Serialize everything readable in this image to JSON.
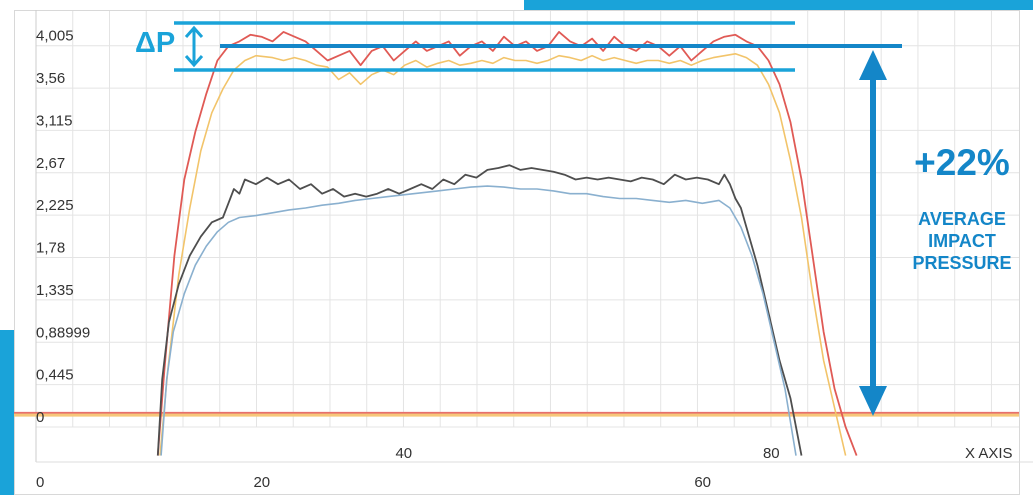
{
  "chart_data": {
    "type": "line",
    "y_ticks": [
      "4,005",
      "3,56",
      "3,115",
      "2,67",
      "2,225",
      "1,78",
      "1,335",
      "0,88999",
      "0,445",
      "0"
    ],
    "y_tick_values": [
      4.005,
      3.56,
      3.115,
      2.67,
      2.225,
      1.78,
      1.335,
      0.88999,
      0.445,
      0
    ],
    "ylim": [
      0,
      4.38
    ],
    "x_axis_top": {
      "ticks": [
        "40",
        "80"
      ],
      "tick_values": [
        40,
        80
      ],
      "label": "X AXIS",
      "xlim": [
        0,
        107
      ]
    },
    "x_axis_bottom": {
      "ticks": [
        "0",
        "20",
        "60"
      ],
      "tick_values": [
        0,
        20,
        60
      ],
      "xlim": [
        0,
        90
      ]
    },
    "grid": true,
    "series": [
      {
        "color": "#e05a55",
        "width": 1.8,
        "values": [
          [
            10.6,
            -0.3
          ],
          [
            11.2,
            0.6
          ],
          [
            12.1,
            1.8
          ],
          [
            13,
            2.6
          ],
          [
            14,
            3.1
          ],
          [
            15,
            3.5
          ],
          [
            16,
            3.85
          ],
          [
            17,
            4.0
          ],
          [
            18,
            4.05
          ],
          [
            19,
            4.12
          ],
          [
            20,
            4.1
          ],
          [
            21,
            4.05
          ],
          [
            22,
            4.15
          ],
          [
            23,
            4.1
          ],
          [
            24,
            4.05
          ],
          [
            25,
            3.95
          ],
          [
            26,
            3.85
          ],
          [
            27,
            3.9
          ],
          [
            28,
            3.95
          ],
          [
            29,
            3.8
          ],
          [
            30,
            3.95
          ],
          [
            31,
            4.0
          ],
          [
            32,
            3.85
          ],
          [
            33,
            3.95
          ],
          [
            34,
            4.05
          ],
          [
            35,
            3.95
          ],
          [
            36,
            4.0
          ],
          [
            37,
            4.05
          ],
          [
            38,
            3.9
          ],
          [
            39,
            4.0
          ],
          [
            40,
            4.05
          ],
          [
            41,
            3.95
          ],
          [
            42,
            4.1
          ],
          [
            43,
            4.0
          ],
          [
            44,
            4.05
          ],
          [
            45,
            3.95
          ],
          [
            46,
            4.0
          ],
          [
            47,
            4.15
          ],
          [
            48,
            4.05
          ],
          [
            49,
            4.0
          ],
          [
            50,
            4.08
          ],
          [
            51,
            3.95
          ],
          [
            52,
            4.1
          ],
          [
            53,
            4.0
          ],
          [
            54,
            3.95
          ],
          [
            55,
            4.05
          ],
          [
            56,
            4.0
          ],
          [
            57,
            3.9
          ],
          [
            58,
            4.0
          ],
          [
            59,
            3.85
          ],
          [
            60,
            3.95
          ],
          [
            61,
            4.05
          ],
          [
            62,
            4.1
          ],
          [
            63,
            4.12
          ],
          [
            64,
            4.05
          ],
          [
            65,
            4.0
          ],
          [
            66,
            3.85
          ],
          [
            67,
            3.6
          ],
          [
            68,
            3.2
          ],
          [
            69,
            2.6
          ],
          [
            70,
            1.8
          ],
          [
            71,
            1.0
          ],
          [
            72,
            0.4
          ],
          [
            73,
            0.0
          ],
          [
            74,
            -0.3
          ]
        ]
      },
      {
        "color": "#f2c46a",
        "width": 1.6,
        "values": [
          [
            10.8,
            -0.3
          ],
          [
            11.5,
            0.6
          ],
          [
            12.5,
            1.6
          ],
          [
            13.5,
            2.3
          ],
          [
            14.5,
            2.9
          ],
          [
            15.5,
            3.3
          ],
          [
            16.5,
            3.55
          ],
          [
            17.5,
            3.75
          ],
          [
            18.5,
            3.85
          ],
          [
            19.5,
            3.9
          ],
          [
            21,
            3.88
          ],
          [
            22,
            3.85
          ],
          [
            23,
            3.88
          ],
          [
            24,
            3.85
          ],
          [
            25,
            3.8
          ],
          [
            26,
            3.78
          ],
          [
            27,
            3.65
          ],
          [
            28,
            3.72
          ],
          [
            29,
            3.6
          ],
          [
            30,
            3.7
          ],
          [
            31,
            3.75
          ],
          [
            32,
            3.7
          ],
          [
            33,
            3.8
          ],
          [
            34,
            3.85
          ],
          [
            35,
            3.78
          ],
          [
            36,
            3.82
          ],
          [
            37,
            3.85
          ],
          [
            38,
            3.8
          ],
          [
            39,
            3.82
          ],
          [
            40,
            3.85
          ],
          [
            41,
            3.82
          ],
          [
            42,
            3.88
          ],
          [
            43,
            3.85
          ],
          [
            44,
            3.85
          ],
          [
            45,
            3.82
          ],
          [
            46,
            3.85
          ],
          [
            47,
            3.9
          ],
          [
            48,
            3.88
          ],
          [
            49,
            3.85
          ],
          [
            50,
            3.9
          ],
          [
            51,
            3.85
          ],
          [
            52,
            3.88
          ],
          [
            53,
            3.85
          ],
          [
            54,
            3.82
          ],
          [
            55,
            3.85
          ],
          [
            56,
            3.85
          ],
          [
            57,
            3.82
          ],
          [
            58,
            3.85
          ],
          [
            59,
            3.8
          ],
          [
            60,
            3.85
          ],
          [
            61,
            3.88
          ],
          [
            62,
            3.9
          ],
          [
            63,
            3.92
          ],
          [
            64,
            3.88
          ],
          [
            65,
            3.8
          ],
          [
            66,
            3.6
          ],
          [
            67,
            3.3
          ],
          [
            68,
            2.8
          ],
          [
            69,
            2.2
          ],
          [
            70,
            1.4
          ],
          [
            71,
            0.7
          ],
          [
            72,
            0.2
          ],
          [
            73,
            -0.3
          ]
        ]
      },
      {
        "color": "#4e4e4e",
        "width": 1.8,
        "values": [
          [
            10.6,
            -0.3
          ],
          [
            11,
            0.5
          ],
          [
            11.6,
            1.1
          ],
          [
            12.5,
            1.5
          ],
          [
            13.5,
            1.8
          ],
          [
            14.5,
            2.0
          ],
          [
            15.5,
            2.15
          ],
          [
            16.5,
            2.2
          ],
          [
            17,
            2.35
          ],
          [
            17.5,
            2.5
          ],
          [
            18,
            2.45
          ],
          [
            18.5,
            2.6
          ],
          [
            19.5,
            2.55
          ],
          [
            20.5,
            2.62
          ],
          [
            21.5,
            2.55
          ],
          [
            22.5,
            2.6
          ],
          [
            23.5,
            2.5
          ],
          [
            24.5,
            2.55
          ],
          [
            25.5,
            2.45
          ],
          [
            26.5,
            2.5
          ],
          [
            27.5,
            2.42
          ],
          [
            28.5,
            2.45
          ],
          [
            29.5,
            2.42
          ],
          [
            30.5,
            2.45
          ],
          [
            31.5,
            2.5
          ],
          [
            32.5,
            2.45
          ],
          [
            33.5,
            2.5
          ],
          [
            34.5,
            2.55
          ],
          [
            35.5,
            2.5
          ],
          [
            36.5,
            2.6
          ],
          [
            37.5,
            2.55
          ],
          [
            38.5,
            2.65
          ],
          [
            39.5,
            2.62
          ],
          [
            40.5,
            2.7
          ],
          [
            41.5,
            2.72
          ],
          [
            42.5,
            2.75
          ],
          [
            43.5,
            2.7
          ],
          [
            44.5,
            2.72
          ],
          [
            45.5,
            2.7
          ],
          [
            46.5,
            2.68
          ],
          [
            47.5,
            2.65
          ],
          [
            48.5,
            2.6
          ],
          [
            49.5,
            2.62
          ],
          [
            50.5,
            2.6
          ],
          [
            51.5,
            2.62
          ],
          [
            52.5,
            2.6
          ],
          [
            53.5,
            2.58
          ],
          [
            54.5,
            2.62
          ],
          [
            55.5,
            2.6
          ],
          [
            56.5,
            2.55
          ],
          [
            57.5,
            2.65
          ],
          [
            58.5,
            2.6
          ],
          [
            59.5,
            2.62
          ],
          [
            60.5,
            2.6
          ],
          [
            61.5,
            2.55
          ],
          [
            62,
            2.65
          ],
          [
            62.5,
            2.55
          ],
          [
            63,
            2.4
          ],
          [
            63.5,
            2.3
          ],
          [
            64,
            2.1
          ],
          [
            65,
            1.7
          ],
          [
            66,
            1.2
          ],
          [
            67,
            0.7
          ],
          [
            68,
            0.3
          ],
          [
            69,
            -0.3
          ]
        ]
      },
      {
        "color": "#8ab0cf",
        "width": 1.6,
        "values": [
          [
            10.9,
            -0.3
          ],
          [
            11.4,
            0.5
          ],
          [
            12,
            1.0
          ],
          [
            13,
            1.4
          ],
          [
            14,
            1.7
          ],
          [
            15,
            1.9
          ],
          [
            16,
            2.05
          ],
          [
            17,
            2.15
          ],
          [
            18,
            2.2
          ],
          [
            19.5,
            2.22
          ],
          [
            21,
            2.25
          ],
          [
            22.5,
            2.28
          ],
          [
            24,
            2.3
          ],
          [
            25.5,
            2.33
          ],
          [
            27,
            2.35
          ],
          [
            28.5,
            2.38
          ],
          [
            30,
            2.4
          ],
          [
            31.5,
            2.42
          ],
          [
            33,
            2.44
          ],
          [
            34.5,
            2.46
          ],
          [
            36,
            2.48
          ],
          [
            37.5,
            2.5
          ],
          [
            39,
            2.52
          ],
          [
            40.5,
            2.53
          ],
          [
            42,
            2.52
          ],
          [
            43.5,
            2.5
          ],
          [
            45,
            2.5
          ],
          [
            46.5,
            2.48
          ],
          [
            48,
            2.45
          ],
          [
            49.5,
            2.45
          ],
          [
            51,
            2.42
          ],
          [
            52.5,
            2.4
          ],
          [
            54,
            2.4
          ],
          [
            55.5,
            2.38
          ],
          [
            57,
            2.36
          ],
          [
            58.5,
            2.38
          ],
          [
            60,
            2.35
          ],
          [
            61.5,
            2.38
          ],
          [
            62.5,
            2.3
          ],
          [
            63.5,
            2.1
          ],
          [
            64.5,
            1.8
          ],
          [
            65.5,
            1.4
          ],
          [
            66.5,
            0.9
          ],
          [
            67.5,
            0.4
          ],
          [
            68.5,
            -0.3
          ]
        ]
      }
    ],
    "reference_lines": [
      {
        "y": 0.143,
        "color": "#e7706c"
      },
      {
        "y": 0.125,
        "color": "#f6c77a"
      }
    ],
    "annotations": {
      "delta_label": "ΔP",
      "headline": "+22%",
      "sub_label": [
        "AVERAGE",
        "IMPACT",
        "PRESSURE"
      ]
    },
    "colors": {
      "accent": "#1aa3d9",
      "annotation_text": "#1486c8",
      "arrow": "#1486c8",
      "grid": "#e4e4e4"
    }
  }
}
